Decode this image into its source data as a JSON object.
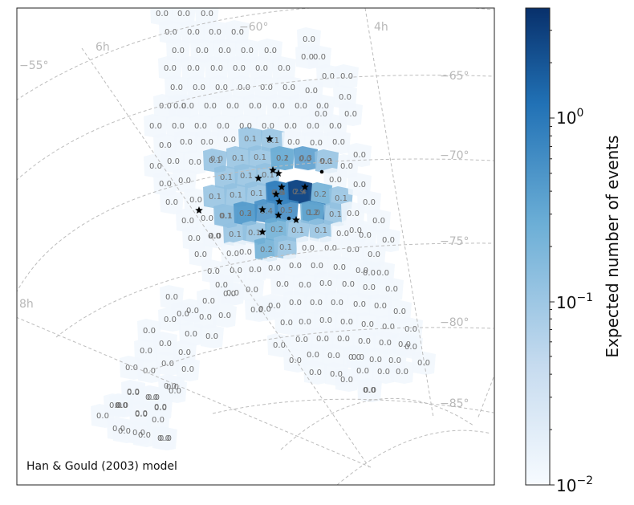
{
  "chart_data": {
    "type": "heatmap",
    "projection_labels": {
      "ra": [
        "4h",
        "6h",
        "8h"
      ],
      "dec": [
        "−55°",
        "−60°",
        "−65°",
        "−70°",
        "−75°",
        "−80°",
        "−85°"
      ]
    },
    "annotation": "Han & Gould (2003) model",
    "colorbar": {
      "label": "Expected number of events",
      "scale": "log",
      "range": [
        0.01,
        3.5
      ],
      "tick_labels": [
        "10^0",
        "10^−1",
        "10^−2"
      ],
      "colors": [
        "#f7fbff",
        "#c6dbef",
        "#6baed6",
        "#2171b5",
        "#08306b"
      ]
    },
    "tiles": {
      "rows": [
        {
          "values": [
            0.0,
            0.0,
            0.0
          ]
        },
        {
          "values": [
            0.0,
            0.0,
            0.0,
            0.0
          ]
        },
        {
          "values": [
            0.0,
            0.0,
            0.0,
            0.0,
            0.0,
            0.0
          ]
        },
        {
          "values": [
            0.0,
            0.0,
            0.0,
            0.0,
            0.0,
            0.0,
            0.0,
            0.0
          ]
        },
        {
          "values": [
            0.0,
            0.0,
            0.0,
            0.0,
            0.0,
            0.0,
            0.0,
            0.0,
            0.0
          ]
        },
        {
          "values": [
            0.0,
            0.0,
            0.0,
            0.0,
            0.0,
            0.0,
            0.0,
            0.0,
            0.0,
            0.0
          ]
        },
        {
          "values": [
            0.0,
            0.0,
            0.0,
            0.0,
            0.0,
            0.0,
            0.0,
            0.0,
            0.0,
            0.0,
            0.0
          ]
        },
        {
          "values": [
            0.0,
            0.0,
            0.0,
            0.0,
            0.1,
            0.1,
            0.0,
            0.0,
            0.0,
            0.0
          ]
        },
        {
          "values": [
            0.0,
            0.0,
            0.0,
            0.0,
            0.1,
            0.1,
            0.1,
            0.0,
            0.0,
            0.0
          ]
        },
        {
          "values": [
            0.0,
            0.0,
            0.1,
            0.1,
            0.1,
            0.1,
            0.2,
            0.3,
            0.1,
            0.0
          ]
        },
        {
          "values": [
            0.0,
            0.0,
            0.1,
            0.1,
            0.1,
            0.4,
            0.9,
            0.2,
            0.1,
            0.0
          ]
        },
        {
          "values": [
            0.0,
            0.0,
            0.1,
            0.2,
            0.6,
            2.4,
            1.0,
            0.1,
            0.0
          ]
        },
        {
          "values": [
            0.0,
            0.0,
            0.1,
            0.3,
            0.4,
            0.5,
            0.2,
            0.0,
            0.0,
            0.0
          ]
        },
        {
          "values": [
            0.0,
            0.0,
            0.1,
            0.1,
            0.2,
            0.1,
            0.1,
            0.0,
            0.0,
            0.0
          ]
        },
        {
          "values": [
            0.0,
            0.0,
            0.0,
            0.2,
            0.1,
            0.0,
            0.0,
            0.0,
            0.0
          ]
        },
        {
          "values": [
            0.0,
            0.0,
            0.0,
            0.0,
            0.0,
            0.0,
            0.0,
            0.0,
            0.0
          ]
        },
        {
          "values": [
            0.0,
            0.0,
            0.0,
            0.0,
            0.0,
            0.0,
            0.0,
            0.0,
            0.0
          ]
        },
        {
          "values": [
            0.0,
            0.0,
            0.0,
            0.0,
            0.0,
            0.0,
            0.0,
            0.0,
            0.0,
            0.0,
            0.0
          ]
        },
        {
          "values": [
            0.0,
            0.0,
            0.0,
            0.0,
            0.0,
            0.0,
            0.0,
            0.0,
            0.0,
            0.0,
            0.0,
            0.0
          ]
        },
        {
          "values": [
            0.0,
            0.0,
            0.0,
            0.0,
            0.0,
            0.0,
            0.0,
            0.0,
            0.0,
            0.0,
            0.0
          ]
        },
        {
          "values": [
            0.0,
            0.0,
            0.0,
            0.0,
            0.0,
            0.0,
            0.0,
            0.0,
            0.0,
            0.0,
            0.0
          ]
        },
        {
          "values": [
            0.0,
            0.0,
            0.0,
            0.0,
            0.0,
            0.0,
            0.0,
            0.0,
            0.0,
            0.0,
            0.0,
            0.0
          ]
        },
        {
          "values": [
            0.0,
            0.0,
            0.0,
            0.0,
            0.0,
            0.0,
            0.0,
            0.0
          ]
        },
        {
          "values": [
            0.0,
            0.0,
            0.0,
            0.0,
            0.0,
            0.0
          ]
        },
        {
          "values": [
            0.0,
            0.0,
            0.0,
            0.0,
            0.0
          ]
        },
        {
          "values": [
            0.0,
            0.0,
            0.0,
            0.0
          ]
        }
      ]
    }
  }
}
